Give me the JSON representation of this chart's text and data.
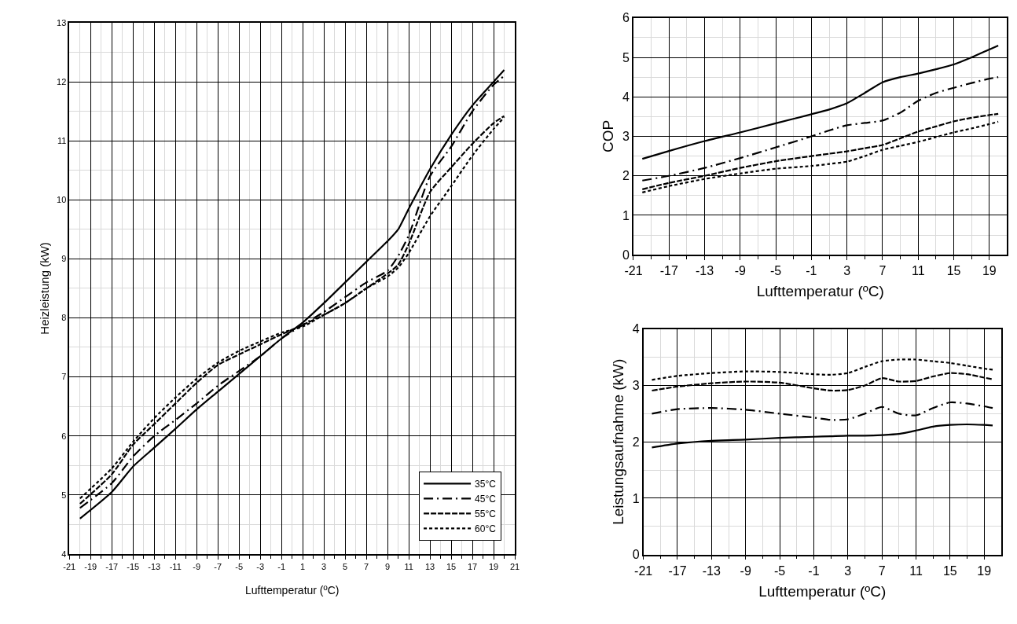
{
  "chart_data": [
    {
      "type": "line",
      "xlabel": "Lufttemperatur (ºC)",
      "ylabel": "Heizleistung (kW)",
      "x": [
        -20,
        -17,
        -15,
        -13,
        -11,
        -9,
        -7,
        -5,
        -3,
        -1,
        1,
        3,
        5,
        7,
        9,
        10,
        11,
        13,
        15,
        17,
        19,
        20
      ],
      "series": [
        {
          "name": "35°C",
          "color": "#000000",
          "line_style": "solid",
          "values": [
            4.6,
            5.05,
            5.48,
            5.8,
            6.12,
            6.45,
            6.75,
            7.05,
            7.35,
            7.65,
            7.92,
            8.25,
            8.6,
            8.95,
            9.3,
            9.5,
            9.85,
            10.52,
            11.1,
            11.6,
            12.0,
            12.2
          ]
        },
        {
          "name": "45°C",
          "color": "#000000",
          "line_style": "dashdot",
          "values": [
            4.78,
            5.2,
            5.65,
            6.0,
            6.27,
            6.55,
            6.85,
            7.1,
            7.35,
            7.65,
            7.88,
            8.1,
            8.35,
            8.6,
            8.8,
            9.05,
            9.4,
            10.4,
            10.9,
            11.5,
            11.95,
            12.1
          ]
        },
        {
          "name": "55°C",
          "color": "#000000",
          "line_style": "dashed",
          "values": [
            4.85,
            5.35,
            5.85,
            6.2,
            6.55,
            6.9,
            7.2,
            7.38,
            7.55,
            7.72,
            7.88,
            8.05,
            8.25,
            8.5,
            8.75,
            8.9,
            9.25,
            10.13,
            10.55,
            10.95,
            11.3,
            11.42
          ]
        },
        {
          "name": "60°C",
          "color": "#000000",
          "line_style": "dotted",
          "values": [
            4.94,
            5.45,
            5.9,
            6.3,
            6.65,
            6.97,
            7.24,
            7.44,
            7.6,
            7.75,
            7.85,
            8.05,
            8.25,
            8.5,
            8.7,
            8.85,
            9.1,
            9.72,
            10.23,
            10.75,
            11.2,
            11.4
          ]
        }
      ],
      "xlim": [
        -21,
        21
      ],
      "xticks": [
        -21,
        -19,
        -17,
        -15,
        -13,
        -11,
        -9,
        -7,
        -5,
        -3,
        -1,
        1,
        3,
        5,
        7,
        9,
        11,
        13,
        15,
        17,
        19,
        21
      ],
      "ylim": [
        4,
        13
      ],
      "yticks": [
        4,
        5,
        6,
        7,
        8,
        9,
        10,
        11,
        12,
        13
      ],
      "grid": true,
      "legend": "bottom right"
    },
    {
      "type": "line",
      "xlabel": "Lufttemperatur (ºC)",
      "ylabel": "COP",
      "x": [
        -20,
        -17,
        -13,
        -9,
        -5,
        -1,
        1,
        3,
        5,
        7,
        9,
        11,
        13,
        15,
        17,
        19,
        20
      ],
      "series": [
        {
          "color": "#000000",
          "line_style": "solid",
          "values": [
            2.43,
            2.63,
            2.88,
            3.1,
            3.33,
            3.56,
            3.68,
            3.84,
            4.1,
            4.37,
            4.5,
            4.59,
            4.7,
            4.82,
            5.0,
            5.2,
            5.3
          ]
        },
        {
          "color": "#000000",
          "line_style": "dashdot",
          "values": [
            1.88,
            2.0,
            2.2,
            2.45,
            2.72,
            3.0,
            3.15,
            3.28,
            3.34,
            3.4,
            3.6,
            3.9,
            4.1,
            4.23,
            4.35,
            4.46,
            4.5
          ]
        },
        {
          "color": "#000000",
          "line_style": "dashed",
          "values": [
            1.66,
            1.82,
            2.0,
            2.2,
            2.37,
            2.5,
            2.56,
            2.62,
            2.7,
            2.78,
            2.95,
            3.12,
            3.25,
            3.38,
            3.47,
            3.54,
            3.57
          ]
        },
        {
          "color": "#000000",
          "line_style": "dotted",
          "values": [
            1.58,
            1.74,
            1.92,
            2.06,
            2.18,
            2.25,
            2.3,
            2.36,
            2.5,
            2.66,
            2.76,
            2.86,
            2.98,
            3.1,
            3.2,
            3.31,
            3.37
          ]
        }
      ],
      "xlim": [
        -21,
        21
      ],
      "xticks": [
        -21,
        -17,
        -13,
        -9,
        -5,
        -1,
        3,
        7,
        11,
        15,
        19
      ],
      "ylim": [
        0,
        6
      ],
      "yticks": [
        0,
        1,
        2,
        3,
        4,
        5,
        6
      ],
      "grid": true
    },
    {
      "type": "line",
      "xlabel": "Lufttemperatur (ºC)",
      "ylabel": "Leistungsaufnahme (kW)",
      "x": [
        -20,
        -17,
        -13,
        -9,
        -5,
        -1,
        1,
        3,
        5,
        7,
        9,
        11,
        13,
        15,
        17,
        19,
        20
      ],
      "series": [
        {
          "color": "#000000",
          "line_style": "solid",
          "values": [
            1.9,
            1.97,
            2.02,
            2.04,
            2.07,
            2.09,
            2.1,
            2.11,
            2.11,
            2.12,
            2.14,
            2.2,
            2.27,
            2.3,
            2.31,
            2.3,
            2.29
          ]
        },
        {
          "color": "#000000",
          "line_style": "dashdot",
          "values": [
            2.5,
            2.58,
            2.6,
            2.57,
            2.5,
            2.43,
            2.39,
            2.4,
            2.5,
            2.62,
            2.5,
            2.47,
            2.6,
            2.7,
            2.68,
            2.63,
            2.6
          ]
        },
        {
          "color": "#000000",
          "line_style": "dashed",
          "values": [
            2.91,
            2.98,
            3.04,
            3.07,
            3.05,
            2.95,
            2.91,
            2.92,
            3.0,
            3.13,
            3.07,
            3.08,
            3.16,
            3.22,
            3.2,
            3.14,
            3.11
          ]
        },
        {
          "color": "#000000",
          "line_style": "dotted",
          "values": [
            3.1,
            3.17,
            3.22,
            3.25,
            3.24,
            3.2,
            3.19,
            3.22,
            3.33,
            3.43,
            3.46,
            3.46,
            3.43,
            3.4,
            3.35,
            3.3,
            3.28
          ]
        }
      ],
      "xlim": [
        -21,
        21
      ],
      "xticks": [
        -21,
        -17,
        -13,
        -9,
        -5,
        -1,
        3,
        7,
        11,
        15,
        19
      ],
      "ylim": [
        0,
        4
      ],
      "yticks": [
        0,
        1,
        2,
        3,
        4
      ],
      "grid": true
    }
  ]
}
